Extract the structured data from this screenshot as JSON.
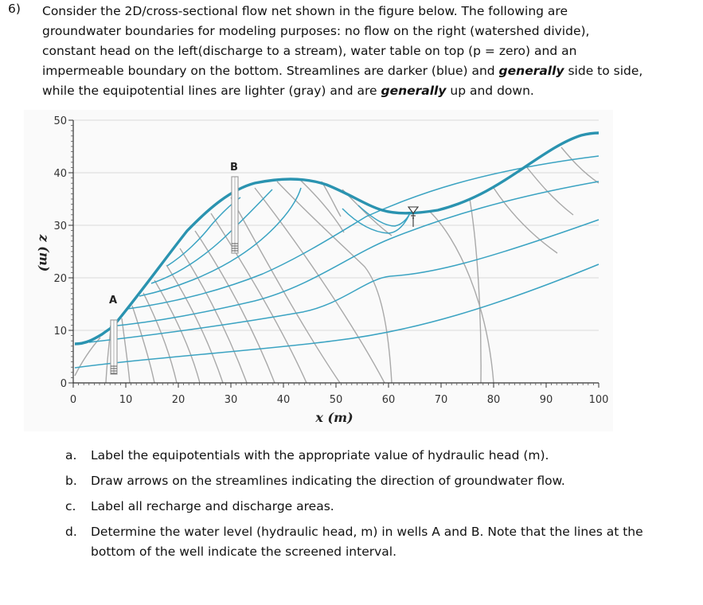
{
  "question": {
    "number": "6)",
    "line1": "Consider the 2D/cross-sectional flow net shown in the figure below.  The following are",
    "line2": "groundwater boundaries for modeling purposes: no flow on the right (watershed divide),",
    "line3": "constant head on the left(discharge to a stream), water table on top (p = zero) and an",
    "line4a": "impermeable boundary on the bottom.  Streamlines are darker (blue) and ",
    "line4b": "generally",
    "line4c": " side to side,",
    "line5a": "while the equipotential lines are lighter (gray) and are ",
    "line5b": "generally",
    "line5c": " up and down."
  },
  "figure": {
    "ylabel": "z (m)",
    "xlabel": "x (m)",
    "y_ticks": [
      "0",
      "10",
      "20",
      "30",
      "40",
      "50"
    ],
    "x_ticks": [
      "0",
      "10",
      "20",
      "30",
      "40",
      "50",
      "60",
      "70",
      "80",
      "90",
      "100"
    ],
    "well_a_label": "A",
    "well_b_label": "B",
    "colors": {
      "water_table": "#2a93b0",
      "streamline": "#3aa3c2",
      "equipotential": "#a9a9a9",
      "gridline": "#d9d9d9"
    }
  },
  "parts": [
    {
      "letter": "a.",
      "text": "Label the equipotentials with the appropriate value of hydraulic head (m)."
    },
    {
      "letter": "b.",
      "text": "Draw arrows on the streamlines indicating the direction of groundwater flow."
    },
    {
      "letter": "c.",
      "text": "Label all recharge and discharge areas."
    },
    {
      "letter": "d.",
      "text": "Determine the water level (hydraulic head, m) in wells A and B.  Note that the lines at the bottom of the well indicate the screened interval."
    }
  ]
}
